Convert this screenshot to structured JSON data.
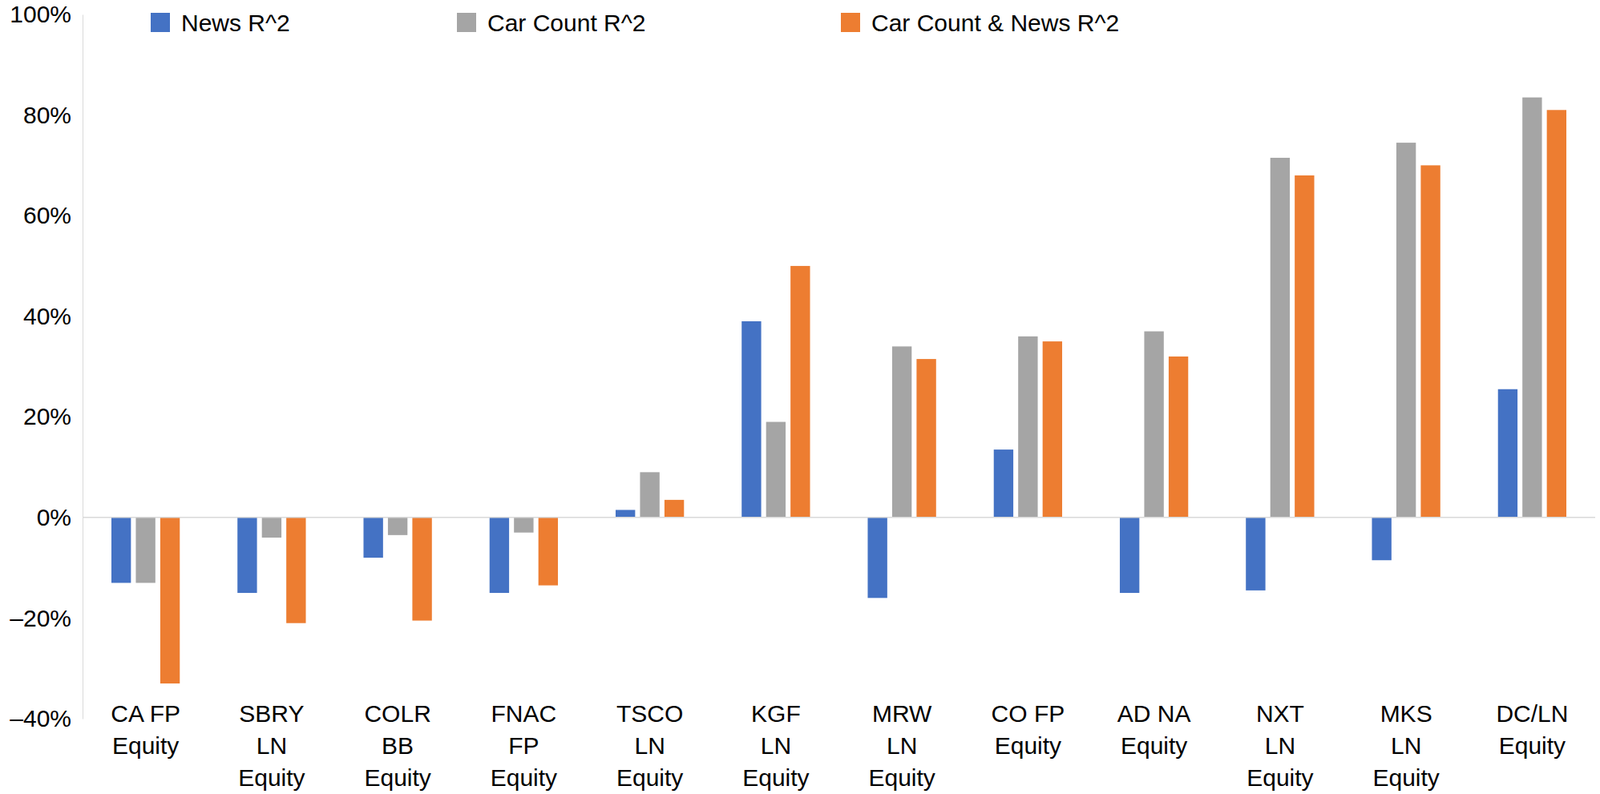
{
  "chart_data": {
    "type": "bar",
    "categories": [
      "CA FP\nEquity",
      "SBRY\nLN\nEquity",
      "COLR\nBB\nEquity",
      "FNAC\nFP\nEquity",
      "TSCO\nLN\nEquity",
      "KGF\nLN\nEquity",
      "MRW\nLN\nEquity",
      "CO FP\nEquity",
      "AD NA\nEquity",
      "NXT\nLN\nEquity",
      "MKS\nLN\nEquity",
      "DC/LN\nEquity"
    ],
    "series": [
      {
        "name": "News R^2",
        "color": "#4472c4",
        "values": [
          -13,
          -15,
          -8,
          -15,
          1.5,
          39,
          -16,
          13.5,
          -15,
          -14.5,
          -8.5,
          25.5
        ]
      },
      {
        "name": "Car Count R^2",
        "color": "#a5a5a5",
        "values": [
          -13,
          -4,
          -3.5,
          -3,
          9,
          19,
          34,
          36,
          37,
          71.5,
          74.5,
          83.5
        ]
      },
      {
        "name": "Car Count & News R^2",
        "color": "#ed7d31",
        "values": [
          -33,
          -21,
          -20.5,
          -13.5,
          3.5,
          50,
          31.5,
          35,
          32,
          68,
          70,
          81
        ]
      }
    ],
    "ylim": [
      -40,
      100
    ],
    "yticks": [
      {
        "value": -40,
        "label": "–40%"
      },
      {
        "value": -20,
        "label": "–20%"
      },
      {
        "value": 0,
        "label": "0%"
      },
      {
        "value": 20,
        "label": "20%"
      },
      {
        "value": 40,
        "label": "40%"
      },
      {
        "value": 60,
        "label": "60%"
      },
      {
        "value": 80,
        "label": "80%"
      },
      {
        "value": 100,
        "label": "100%"
      }
    ],
    "grid": false,
    "legend": "top"
  }
}
